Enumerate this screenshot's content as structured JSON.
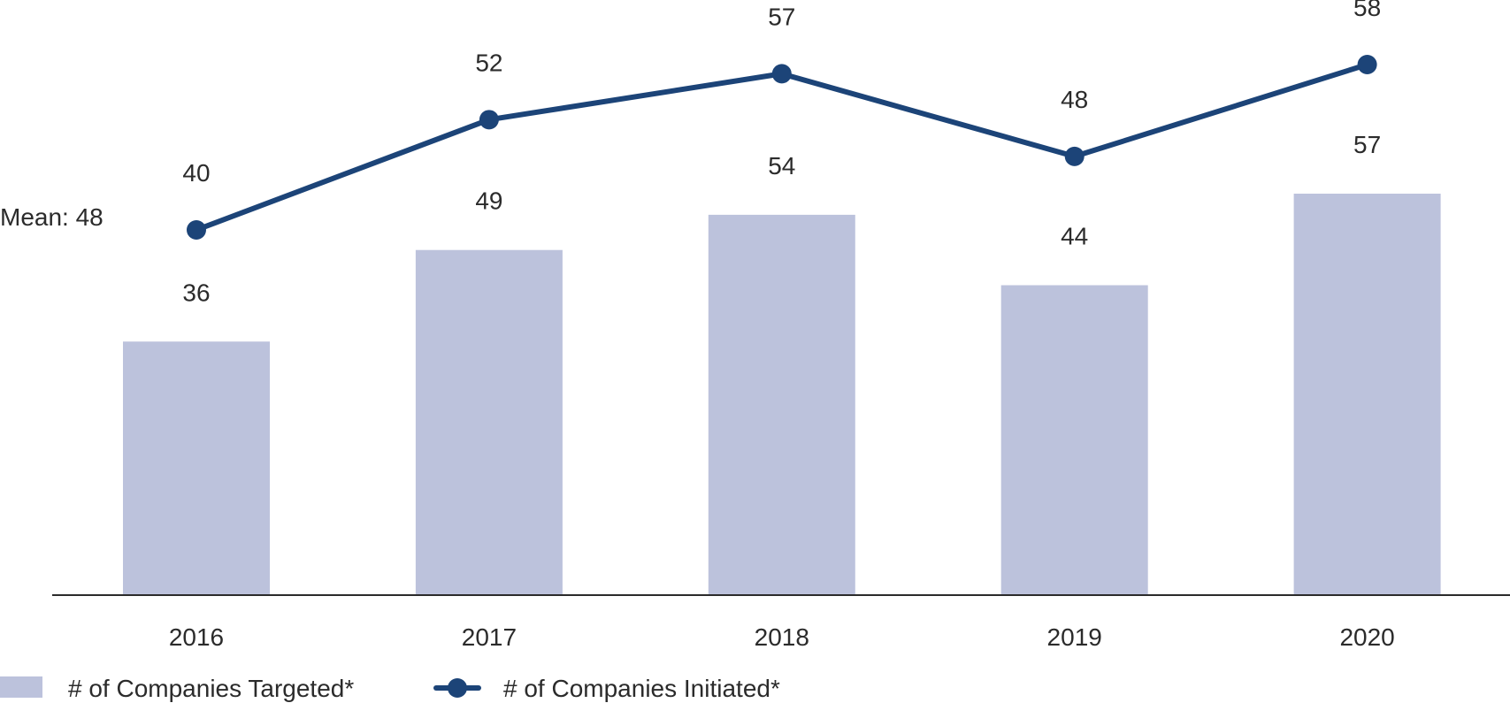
{
  "chart_data": {
    "type": "bar",
    "categories": [
      "2016",
      "2017",
      "2018",
      "2019",
      "2020"
    ],
    "series": [
      {
        "name": "# of Companies Targeted*",
        "kind": "bar",
        "values": [
          36,
          49,
          54,
          44,
          57
        ],
        "color": "#bcc2dc"
      },
      {
        "name": "# of Companies Initiated*",
        "kind": "line",
        "values": [
          40,
          52,
          57,
          48,
          58
        ],
        "color": "#1c4478"
      }
    ],
    "annotations": [
      {
        "text": "Mean: 48",
        "value": 48
      }
    ],
    "value_labels": {
      "bars": [
        "36",
        "49",
        "54",
        "44",
        "57"
      ],
      "line": [
        "40",
        "52",
        "57",
        "48",
        "58"
      ]
    },
    "legend": {
      "position": "bottom-left",
      "items": [
        "# of Companies Targeted*",
        "# of Companies Initiated*"
      ]
    },
    "ylim": [
      0,
      60
    ],
    "xlabel": "",
    "ylabel": "",
    "grid": false,
    "axis_color": "#2b2b2b",
    "text_color": "#2b2b2b"
  }
}
